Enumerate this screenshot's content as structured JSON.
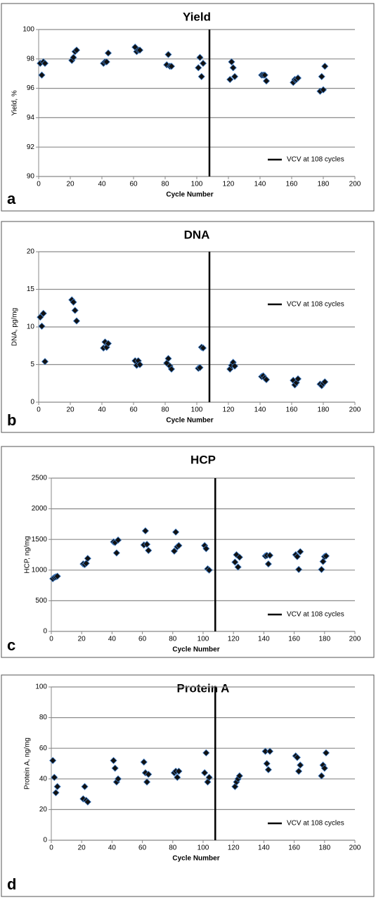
{
  "chart_data": [
    {
      "type": "scatter",
      "panel_label": "a",
      "title": "Yield",
      "xlabel": "Cycle Number",
      "ylabel": "Yield, %",
      "color": "#111111",
      "marker": "diamond",
      "x": [
        1,
        2,
        3,
        4,
        21,
        22,
        23,
        24,
        41,
        42,
        43,
        44,
        61,
        62,
        63,
        64,
        81,
        82,
        83,
        84,
        101,
        102,
        103,
        104,
        121,
        122,
        123,
        124,
        141,
        142,
        143,
        144,
        161,
        162,
        163,
        164,
        178,
        179,
        180,
        181
      ],
      "values": [
        97.7,
        96.9,
        97.8,
        97.7,
        97.9,
        98.1,
        98.5,
        98.6,
        97.7,
        97.8,
        97.8,
        98.4,
        98.8,
        98.5,
        98.6,
        98.6,
        97.6,
        98.3,
        97.5,
        97.5,
        97.4,
        98.1,
        96.8,
        97.7,
        96.6,
        97.8,
        97.4,
        96.8,
        96.9,
        96.9,
        96.9,
        96.5,
        96.4,
        96.6,
        96.6,
        96.7,
        95.8,
        96.8,
        95.9,
        97.5
      ],
      "vline": {
        "x": 108,
        "label": "VCV at 108 cycles"
      },
      "legend": "lower right",
      "grid": true,
      "xlim": [
        0,
        200
      ],
      "xticks": [
        0,
        20,
        40,
        60,
        80,
        100,
        120,
        140,
        160,
        180,
        200
      ],
      "ylim": [
        90,
        100
      ],
      "yticks": [
        90,
        92,
        94,
        96,
        98,
        100
      ]
    },
    {
      "type": "scatter",
      "panel_label": "b",
      "title": "DNA",
      "xlabel": "Cycle Number",
      "ylabel": "DNA, pg/mg",
      "color": "#111111",
      "marker": "diamond",
      "x": [
        1,
        2,
        3,
        4,
        21,
        22,
        23,
        24,
        41,
        42,
        43,
        44,
        61,
        62,
        63,
        64,
        81,
        82,
        83,
        84,
        101,
        102,
        103,
        104,
        121,
        122,
        123,
        124,
        141,
        142,
        143,
        144,
        161,
        162,
        163,
        164,
        178,
        179,
        180,
        181
      ],
      "values": [
        11.3,
        10.1,
        11.8,
        5.4,
        13.6,
        13.3,
        12.2,
        10.8,
        7.2,
        8.0,
        7.3,
        7.8,
        5.5,
        4.9,
        5.5,
        5.0,
        5.2,
        5.8,
        4.8,
        4.4,
        4.5,
        4.6,
        7.3,
        7.2,
        4.4,
        4.9,
        5.3,
        4.8,
        3.4,
        3.5,
        3.2,
        3.0,
        2.9,
        2.3,
        2.6,
        3.1,
        2.4,
        2.2,
        2.5,
        2.7
      ],
      "vline": {
        "x": 108,
        "label": "VCV at 108 cycles"
      },
      "legend": "upper right",
      "grid": true,
      "xlim": [
        0,
        200
      ],
      "xticks": [
        0,
        20,
        40,
        60,
        80,
        100,
        120,
        140,
        160,
        180,
        200
      ],
      "ylim": [
        0,
        20
      ],
      "yticks": [
        0,
        5,
        10,
        15,
        20
      ]
    },
    {
      "type": "scatter",
      "panel_label": "c",
      "title": "HCP",
      "xlabel": "Cycle Number",
      "ylabel": "HCP, ng/mg",
      "color": "#111111",
      "marker": "diamond",
      "x": [
        1,
        2,
        3,
        4,
        21,
        22,
        23,
        24,
        41,
        42,
        43,
        44,
        61,
        62,
        63,
        64,
        81,
        82,
        83,
        84,
        101,
        102,
        103,
        104,
        121,
        122,
        123,
        124,
        141,
        142,
        143,
        144,
        161,
        162,
        163,
        164,
        178,
        179,
        180,
        181
      ],
      "values": [
        860,
        880,
        890,
        900,
        1100,
        1090,
        1110,
        1190,
        1460,
        1450,
        1280,
        1490,
        1410,
        1640,
        1420,
        1320,
        1310,
        1620,
        1380,
        1400,
        1400,
        1350,
        1020,
        1000,
        1130,
        1250,
        1050,
        1210,
        1230,
        1240,
        1100,
        1240,
        1250,
        1220,
        1010,
        1300,
        1010,
        1140,
        1220,
        1230
      ],
      "vline": {
        "x": 108,
        "label": "VCV at 108 cycles"
      },
      "legend": "lower right",
      "grid": true,
      "xlim": [
        0,
        200
      ],
      "xticks": [
        0,
        20,
        40,
        60,
        80,
        100,
        120,
        140,
        160,
        180,
        200
      ],
      "ylim": [
        0,
        2500
      ],
      "yticks": [
        0,
        500,
        1000,
        1500,
        2000,
        2500
      ]
    },
    {
      "type": "scatter",
      "panel_label": "d",
      "title": "Protein A",
      "xlabel": "Cycle Number",
      "ylabel": "Protein A, ng/mg",
      "color": "#111111",
      "marker": "diamond",
      "x": [
        1,
        2,
        3,
        4,
        21,
        22,
        23,
        24,
        41,
        42,
        43,
        44,
        61,
        62,
        63,
        64,
        81,
        82,
        83,
        84,
        101,
        102,
        103,
        104,
        121,
        122,
        123,
        124,
        141,
        142,
        143,
        144,
        161,
        162,
        163,
        164,
        178,
        179,
        180,
        181
      ],
      "values": [
        52,
        41,
        31,
        35,
        27,
        35,
        26,
        25,
        52,
        47,
        38,
        40,
        51,
        44,
        38,
        43,
        44,
        45,
        41,
        45,
        44,
        57,
        38,
        41,
        35,
        38,
        40,
        42,
        58,
        50,
        46,
        58,
        55,
        54,
        45,
        49,
        42,
        49,
        47,
        57
      ],
      "vline": {
        "x": 108,
        "label": "VCV at 108 cycles"
      },
      "legend": "lower right",
      "grid": true,
      "xlim": [
        0,
        200
      ],
      "xticks": [
        0,
        20,
        40,
        60,
        80,
        100,
        120,
        140,
        160,
        180,
        200
      ],
      "ylim": [
        0,
        100
      ],
      "yticks": [
        0,
        20,
        40,
        60,
        80,
        100
      ]
    }
  ]
}
